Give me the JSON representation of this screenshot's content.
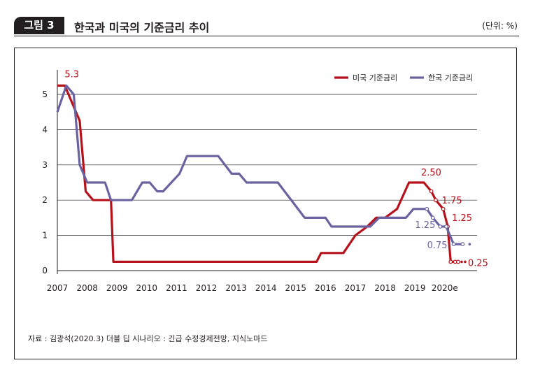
{
  "header": {
    "figure_label": "그림 3",
    "title": "한국과 미국의 기준금리 추이",
    "unit": "(단위: %)"
  },
  "source": "자료 : 김광석(2020.3) 더블 딥 시나리오 : 긴급 수정경제전망, 지식노마드",
  "colors": {
    "us": "#b5121b",
    "kr": "#6a63a0",
    "grid": "#231f20",
    "text": "#231f20"
  },
  "chart_data": {
    "type": "line",
    "title": "한국과 미국의 기준금리 추이",
    "xlabel": "",
    "ylabel": "",
    "xlim": [
      2007,
      2021
    ],
    "ylim": [
      0,
      5.5
    ],
    "grid": true,
    "legend_position": "top-right",
    "x_tick_labels": [
      "2007",
      "2008",
      "2009",
      "2010",
      "2011",
      "2012",
      "2013",
      "2014",
      "2015",
      "2016",
      "2017",
      "2018",
      "2019",
      "2020e"
    ],
    "y_ticks": [
      0,
      1,
      2,
      3,
      4,
      5
    ],
    "series": [
      {
        "name": "미국 기준금리",
        "color": "#b5121b",
        "x": [
          2007.0,
          2007.25,
          2007.75,
          2007.95,
          2008.2,
          2008.45,
          2008.8,
          2008.88,
          2015.7,
          2015.85,
          2016.6,
          2017.0,
          2017.4,
          2017.7,
          2018.0,
          2018.4,
          2018.8,
          2019.3,
          2019.55,
          2019.7,
          2019.95,
          2020.1,
          2020.2,
          2020.35,
          2020.45
        ],
        "y": [
          5.25,
          5.25,
          4.25,
          2.25,
          2.0,
          2.0,
          2.0,
          0.25,
          0.25,
          0.5,
          0.5,
          1.0,
          1.25,
          1.5,
          1.5,
          1.75,
          2.5,
          2.5,
          2.25,
          2.0,
          1.75,
          1.25,
          0.25,
          0.25,
          0.25
        ],
        "dotted_from_index": 18
      },
      {
        "name": "한국 기준금리",
        "color": "#6a63a0",
        "x": [
          2007.0,
          2007.3,
          2007.55,
          2007.75,
          2008.0,
          2008.6,
          2008.8,
          2009.5,
          2009.85,
          2010.1,
          2010.35,
          2010.55,
          2011.1,
          2011.35,
          2012.4,
          2012.85,
          2013.1,
          2013.35,
          2014.4,
          2015.3,
          2016.0,
          2016.2,
          2017.5,
          2017.8,
          2018.2,
          2018.7,
          2018.95,
          2019.4,
          2019.6,
          2019.85,
          2020.05,
          2020.3,
          2020.6
        ],
        "y": [
          4.5,
          5.25,
          5.0,
          3.0,
          2.5,
          2.5,
          2.0,
          2.0,
          2.5,
          2.5,
          2.25,
          2.25,
          2.75,
          3.25,
          3.25,
          2.75,
          2.75,
          2.5,
          2.5,
          1.5,
          1.5,
          1.25,
          1.25,
          1.5,
          1.5,
          1.5,
          1.75,
          1.75,
          1.5,
          1.25,
          1.25,
          0.75,
          0.75
        ],
        "dotted_from_index": 27
      }
    ],
    "annotations": [
      {
        "text": "5.3",
        "x": 2007.15,
        "y": 5.25,
        "series": "us"
      },
      {
        "text": "2.50",
        "x": 2019.3,
        "y": 2.5,
        "series": "us"
      },
      {
        "text": "1.75",
        "x": 2019.95,
        "y": 1.75,
        "series": "us"
      },
      {
        "text": "1.25",
        "x": 2020.1,
        "y": 1.25,
        "series": "us"
      },
      {
        "text": "0.25",
        "x": 2020.45,
        "y": 0.25,
        "series": "us"
      },
      {
        "text": "1.25",
        "x": 2019.85,
        "y": 1.25,
        "series": "kr"
      },
      {
        "text": "0.75",
        "x": 2020.3,
        "y": 0.75,
        "series": "kr"
      }
    ]
  }
}
